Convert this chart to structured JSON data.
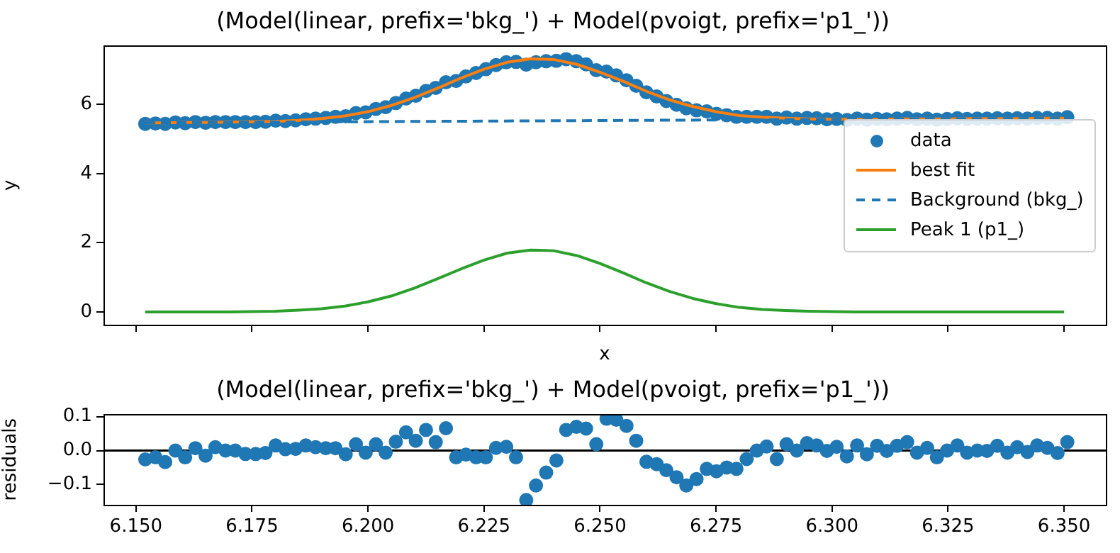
{
  "chart_data": [
    {
      "type": "line",
      "title": "(Model(linear, prefix='bkg_') + Model(pvoigt, prefix='p1_'))",
      "xlabel": "x",
      "ylabel": "y",
      "xlim": [
        6.143,
        6.359
      ],
      "xticks": [
        6.15,
        6.175,
        6.2,
        6.225,
        6.25,
        6.275,
        6.3,
        6.325,
        6.35
      ],
      "ylim": [
        -0.37,
        7.7
      ],
      "yticks": [
        0,
        2,
        4,
        6
      ],
      "tick_labels": "y",
      "legend": "right",
      "series": [
        {
          "name": "data",
          "type": "scatter",
          "marker": "circle",
          "color": "#1f77b4",
          "x": [
            6.152,
            6.1542,
            6.1563,
            6.1585,
            6.1606,
            6.1628,
            6.165,
            6.1671,
            6.1693,
            6.1714,
            6.1736,
            6.1758,
            6.1779,
            6.1801,
            6.1822,
            6.1844,
            6.1866,
            6.1887,
            6.1909,
            6.193,
            6.1952,
            6.1974,
            6.1995,
            6.2017,
            6.2038,
            6.206,
            6.2082,
            6.2103,
            6.2125,
            6.2146,
            6.2168,
            6.219,
            6.2211,
            6.2233,
            6.2254,
            6.2276,
            6.2298,
            6.2319,
            6.2341,
            6.2362,
            6.2384,
            6.2406,
            6.2427,
            6.2449,
            6.247,
            6.2492,
            6.2514,
            6.2535,
            6.2557,
            6.2578,
            6.26,
            6.2622,
            6.2643,
            6.2665,
            6.2686,
            6.2708,
            6.273,
            6.2751,
            6.2773,
            6.2794,
            6.2816,
            6.2838,
            6.2859,
            6.2881,
            6.2902,
            6.2924,
            6.2946,
            6.2967,
            6.2989,
            6.301,
            6.3032,
            6.3054,
            6.3075,
            6.3097,
            6.3118,
            6.314,
            6.3162,
            6.3183,
            6.3205,
            6.3226,
            6.3248,
            6.327,
            6.3291,
            6.3313,
            6.3334,
            6.3356,
            6.3378,
            6.3399,
            6.3421,
            6.3442,
            6.3464,
            6.3486,
            6.3507
          ],
          "values": [
            5.44,
            5.45,
            5.44,
            5.48,
            5.46,
            5.49,
            5.47,
            5.49,
            5.49,
            5.49,
            5.49,
            5.49,
            5.5,
            5.53,
            5.52,
            5.54,
            5.57,
            5.59,
            5.61,
            5.64,
            5.66,
            5.75,
            5.77,
            5.87,
            5.92,
            6.04,
            6.17,
            6.25,
            6.39,
            6.48,
            6.64,
            6.68,
            6.81,
            6.91,
            7.02,
            7.14,
            7.22,
            7.23,
            7.15,
            7.22,
            7.25,
            7.26,
            7.31,
            7.25,
            7.16,
            6.99,
            6.95,
            6.84,
            6.7,
            6.54,
            6.35,
            6.23,
            6.1,
            5.99,
            5.89,
            5.83,
            5.8,
            5.73,
            5.69,
            5.64,
            5.64,
            5.64,
            5.64,
            5.59,
            5.62,
            5.59,
            5.61,
            5.6,
            5.57,
            5.58,
            5.55,
            5.59,
            5.56,
            5.58,
            5.57,
            5.59,
            5.61,
            5.57,
            5.59,
            5.56,
            5.58,
            5.6,
            5.58,
            5.59,
            5.59,
            5.6,
            5.59,
            5.6,
            5.59,
            5.61,
            5.61,
            5.59,
            5.63
          ]
        },
        {
          "name": "best fit",
          "marker": "none",
          "line_style": "solid",
          "color": "#ff7f0e",
          "x": [
            6.152,
            6.155,
            6.16,
            6.165,
            6.17,
            6.175,
            6.18,
            6.185,
            6.19,
            6.195,
            6.2,
            6.205,
            6.21,
            6.215,
            6.22,
            6.225,
            6.23,
            6.235,
            6.24,
            6.245,
            6.25,
            6.255,
            6.26,
            6.265,
            6.27,
            6.275,
            6.28,
            6.285,
            6.29,
            6.295,
            6.3,
            6.305,
            6.31,
            6.315,
            6.32,
            6.325,
            6.33,
            6.335,
            6.34,
            6.345,
            6.35
          ],
          "values": [
            5.47,
            5.47,
            5.48,
            5.48,
            5.49,
            5.5,
            5.51,
            5.54,
            5.59,
            5.67,
            5.79,
            5.97,
            6.2,
            6.47,
            6.76,
            7.02,
            7.22,
            7.32,
            7.3,
            7.16,
            6.93,
            6.67,
            6.38,
            6.13,
            5.94,
            5.79,
            5.68,
            5.63,
            5.6,
            5.58,
            5.57,
            5.57,
            5.57,
            5.58,
            5.58,
            5.58,
            5.59,
            5.59,
            5.59,
            5.6,
            5.6
          ]
        },
        {
          "name": "Background (bkg_)",
          "marker": "none",
          "line_style": "dashed",
          "color": "#1f77b4",
          "x": [
            6.152,
            6.35
          ],
          "values": [
            5.47,
            5.6
          ]
        },
        {
          "name": "Peak 1 (p1_)",
          "marker": "none",
          "line_style": "solid",
          "color": "#2ca02c",
          "x": [
            6.152,
            6.155,
            6.16,
            6.165,
            6.17,
            6.175,
            6.18,
            6.185,
            6.19,
            6.195,
            6.2,
            6.205,
            6.21,
            6.215,
            6.22,
            6.225,
            6.23,
            6.235,
            6.24,
            6.245,
            6.25,
            6.255,
            6.26,
            6.265,
            6.27,
            6.275,
            6.28,
            6.285,
            6.29,
            6.295,
            6.3,
            6.305,
            6.31,
            6.315,
            6.32,
            6.325,
            6.33,
            6.335,
            6.34,
            6.345,
            6.35
          ],
          "values": [
            0,
            0,
            0,
            0,
            0,
            0.01,
            0.02,
            0.05,
            0.09,
            0.17,
            0.29,
            0.46,
            0.69,
            0.96,
            1.24,
            1.5,
            1.7,
            1.79,
            1.77,
            1.63,
            1.4,
            1.13,
            0.84,
            0.59,
            0.39,
            0.24,
            0.13,
            0.07,
            0.04,
            0.02,
            0.01,
            0,
            0,
            0,
            0,
            0,
            0,
            0,
            0,
            0,
            0
          ]
        }
      ]
    },
    {
      "type": "scatter",
      "title": "(Model(linear, prefix='bkg_') + Model(pvoigt, prefix='p1_'))",
      "ylabel": "residuals",
      "xlim": [
        6.143,
        6.359
      ],
      "xticks": [
        {
          "value": 6.15,
          "label": "6.150"
        },
        {
          "value": 6.175,
          "label": "6.175"
        },
        {
          "value": 6.2,
          "label": "6.200"
        },
        {
          "value": 6.225,
          "label": "6.225"
        },
        {
          "value": 6.25,
          "label": "6.250"
        },
        {
          "value": 6.275,
          "label": "6.275"
        },
        {
          "value": 6.3,
          "label": "6.300"
        },
        {
          "value": 6.325,
          "label": "6.325"
        },
        {
          "value": 6.35,
          "label": "6.350"
        }
      ],
      "ylim": [
        -0.16,
        0.107
      ],
      "yticks": [
        {
          "value": -0.1,
          "label": "−0.1"
        },
        {
          "value": 0,
          "label": "0.0"
        },
        0.1
      ],
      "marker": "circle",
      "ref_lines": [
        {
          "axis": "y",
          "value": 0,
          "color": "#000000",
          "line_style": "solid"
        }
      ],
      "series": [
        {
          "color": "#1f77b4",
          "x": [
            6.152,
            6.1542,
            6.1563,
            6.1585,
            6.1606,
            6.1628,
            6.165,
            6.1671,
            6.1693,
            6.1714,
            6.1736,
            6.1758,
            6.1779,
            6.1801,
            6.1822,
            6.1844,
            6.1866,
            6.1887,
            6.1909,
            6.193,
            6.1952,
            6.1974,
            6.1995,
            6.2017,
            6.2038,
            6.206,
            6.2082,
            6.2103,
            6.2125,
            6.2146,
            6.2168,
            6.219,
            6.2211,
            6.2233,
            6.2254,
            6.2276,
            6.2298,
            6.2319,
            6.2341,
            6.2362,
            6.2384,
            6.2406,
            6.2427,
            6.2449,
            6.247,
            6.2492,
            6.2514,
            6.2535,
            6.2557,
            6.2578,
            6.26,
            6.2622,
            6.2643,
            6.2665,
            6.2686,
            6.2708,
            6.273,
            6.2751,
            6.2773,
            6.2794,
            6.2816,
            6.2838,
            6.2859,
            6.2881,
            6.2902,
            6.2924,
            6.2946,
            6.2967,
            6.2989,
            6.301,
            6.3032,
            6.3054,
            6.3075,
            6.3097,
            6.3118,
            6.314,
            6.3162,
            6.3183,
            6.3205,
            6.3226,
            6.3248,
            6.327,
            6.3291,
            6.3313,
            6.3334,
            6.3356,
            6.3378,
            6.3399,
            6.3421,
            6.3442,
            6.3464,
            6.3486,
            6.3507
          ],
          "values": [
            -0.026,
            -0.02,
            -0.034,
            0,
            -0.02,
            0.007,
            -0.015,
            0.01,
            0,
            0,
            -0.01,
            -0.01,
            -0.007,
            0.015,
            0.004,
            0.005,
            0.015,
            0.01,
            0.007,
            0.007,
            -0.011,
            0.019,
            -0.006,
            0.019,
            -0.006,
            0.026,
            0.054,
            0.029,
            0.061,
            0.025,
            0.066,
            -0.02,
            -0.012,
            -0.02,
            -0.02,
            0.008,
            0.011,
            -0.02,
            -0.146,
            -0.103,
            -0.065,
            -0.029,
            0.061,
            0.07,
            0.065,
            0.019,
            0.094,
            0.091,
            0.073,
            0.029,
            -0.033,
            -0.04,
            -0.058,
            -0.079,
            -0.103,
            -0.084,
            -0.054,
            -0.061,
            -0.05,
            -0.054,
            -0.025,
            0,
            0.012,
            -0.025,
            0.019,
            0,
            0.022,
            0.015,
            -0.001,
            0.011,
            -0.017,
            0.015,
            -0.011,
            0.014,
            -0.001,
            0.014,
            0.025,
            -0.006,
            0.008,
            -0.02,
            0,
            0.015,
            -0.006,
            0,
            -0.001,
            0.014,
            -0.006,
            0.01,
            -0.004,
            0.015,
            0.008,
            -0.007,
            0.025
          ]
        }
      ]
    }
  ]
}
